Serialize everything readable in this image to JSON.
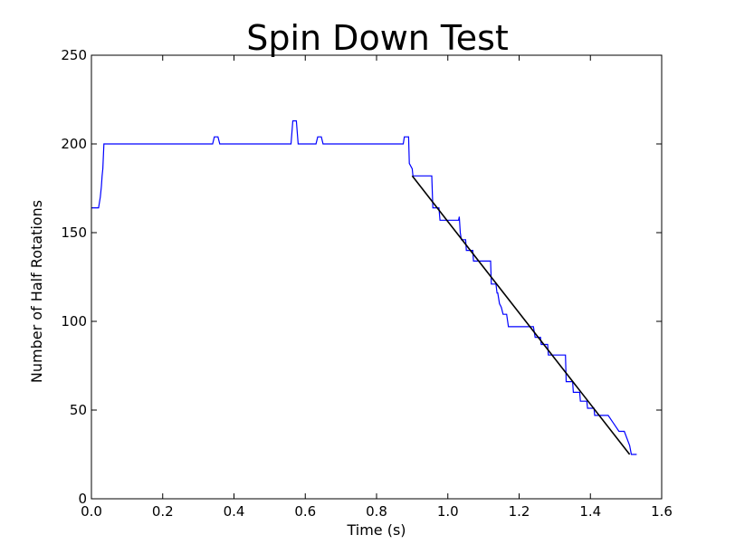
{
  "chart_data": {
    "type": "line",
    "title": "Spin Down Test",
    "xlabel": "Time (s)",
    "ylabel": "Number of Half Rotations",
    "xlim": [
      0.0,
      1.6
    ],
    "ylim": [
      0,
      250
    ],
    "xticks": [
      "0.0",
      "0.2",
      "0.4",
      "0.6",
      "0.8",
      "1.0",
      "1.2",
      "1.4",
      "1.6"
    ],
    "yticks": [
      "0",
      "50",
      "100",
      "150",
      "200",
      "250"
    ],
    "grid": false,
    "legend": "none",
    "series": [
      {
        "color": "#0000ff",
        "style": "step",
        "x": [
          0.0,
          0.02,
          0.025,
          0.028,
          0.03,
          0.032,
          0.035,
          0.04,
          0.34,
          0.345,
          0.355,
          0.36,
          0.56,
          0.565,
          0.575,
          0.58,
          0.63,
          0.635,
          0.645,
          0.65,
          0.875,
          0.878,
          0.89,
          0.892,
          0.9,
          0.902,
          0.955,
          0.958,
          0.975,
          0.978,
          1.03,
          1.032,
          1.035,
          1.038,
          1.05,
          1.052,
          1.07,
          1.072,
          1.085,
          1.088,
          1.12,
          1.122,
          1.135,
          1.138,
          1.14,
          1.145,
          1.15,
          1.155,
          1.165,
          1.17,
          1.18,
          1.185,
          1.24,
          1.245,
          1.26,
          1.262,
          1.28,
          1.282,
          1.3,
          1.302,
          1.33,
          1.332,
          1.35,
          1.352,
          1.37,
          1.372,
          1.39,
          1.392,
          1.41,
          1.412,
          1.43,
          1.435,
          1.45,
          1.46,
          1.47,
          1.48,
          1.49,
          1.495,
          1.51,
          1.515,
          1.53
        ],
        "y": [
          164,
          164,
          170,
          176,
          182,
          186,
          200,
          200,
          200,
          204,
          204,
          200,
          200,
          213,
          213,
          200,
          200,
          204,
          204,
          200,
          200,
          204,
          204,
          189,
          186,
          182,
          182,
          164,
          164,
          157,
          157,
          159,
          150,
          146,
          146,
          140,
          140,
          134,
          134,
          134,
          134,
          121,
          121,
          116,
          116,
          110,
          108,
          104,
          104,
          97,
          97,
          97,
          97,
          91,
          91,
          87,
          87,
          81,
          81,
          81,
          81,
          66,
          66,
          60,
          60,
          55,
          55,
          51,
          51,
          47,
          47,
          47,
          47,
          44,
          41,
          38,
          38,
          38,
          30,
          25,
          25
        ]
      },
      {
        "color": "#000000",
        "style": "line",
        "x": [
          0.9,
          1.51
        ],
        "y": [
          182,
          25
        ]
      }
    ]
  }
}
